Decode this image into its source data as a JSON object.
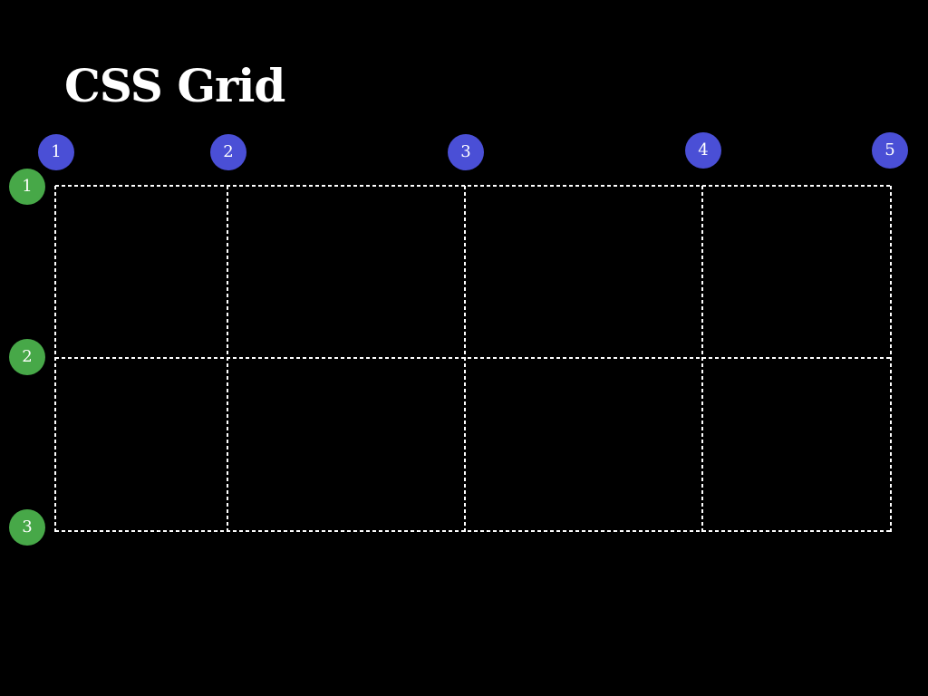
{
  "title": "CSS Grid",
  "colors": {
    "background": "#000000",
    "title": "#ffffff",
    "grid_line": "#ffffff",
    "column_badge": "#4a4fd6",
    "row_badge": "#47a848"
  },
  "column_lines": [
    "1",
    "2",
    "3",
    "4",
    "5"
  ],
  "row_lines": [
    "1",
    "2",
    "3"
  ]
}
